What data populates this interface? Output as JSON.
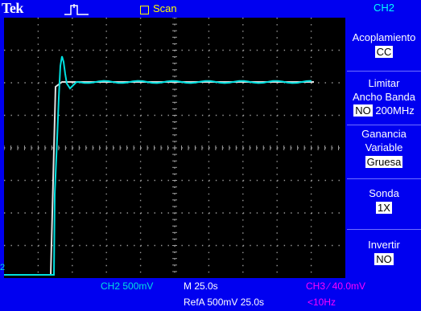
{
  "brand": "Tek",
  "header": {
    "trigger_icon": "trigger-pulse-icon",
    "acq_mode": "Scan"
  },
  "colors": {
    "background": "#0000f0",
    "screen": "#000000",
    "ch2_trace": "#00e0e0",
    "ref_trace": "#e0e0e0",
    "status_text": "#ffffff",
    "trigger_text": "#ff00ff",
    "menu_title": "#00ffff"
  },
  "channel_marker": "2",
  "status": {
    "ch2_scale": "CH2  500mV",
    "timebase": "M 25.0s",
    "trigger": "CH3  ∕  40.0mV",
    "ref": "RefA 500mV 25.0s",
    "trigger_freq": "<10Hz"
  },
  "menu": {
    "title": "CH2",
    "coupling": {
      "label": "Acoplamiento",
      "value": "CC"
    },
    "bandwidth": {
      "label_line1": "Limitar",
      "label_line2": "Ancho Banda",
      "selected": "NO",
      "option": "200MHz"
    },
    "gain": {
      "label_line1": "Ganancia",
      "label_line2": "Variable",
      "value": "Gruesa"
    },
    "probe": {
      "label": "Sonda",
      "value": "1X"
    },
    "invert": {
      "label": "Invertir",
      "value": "NO"
    }
  }
}
